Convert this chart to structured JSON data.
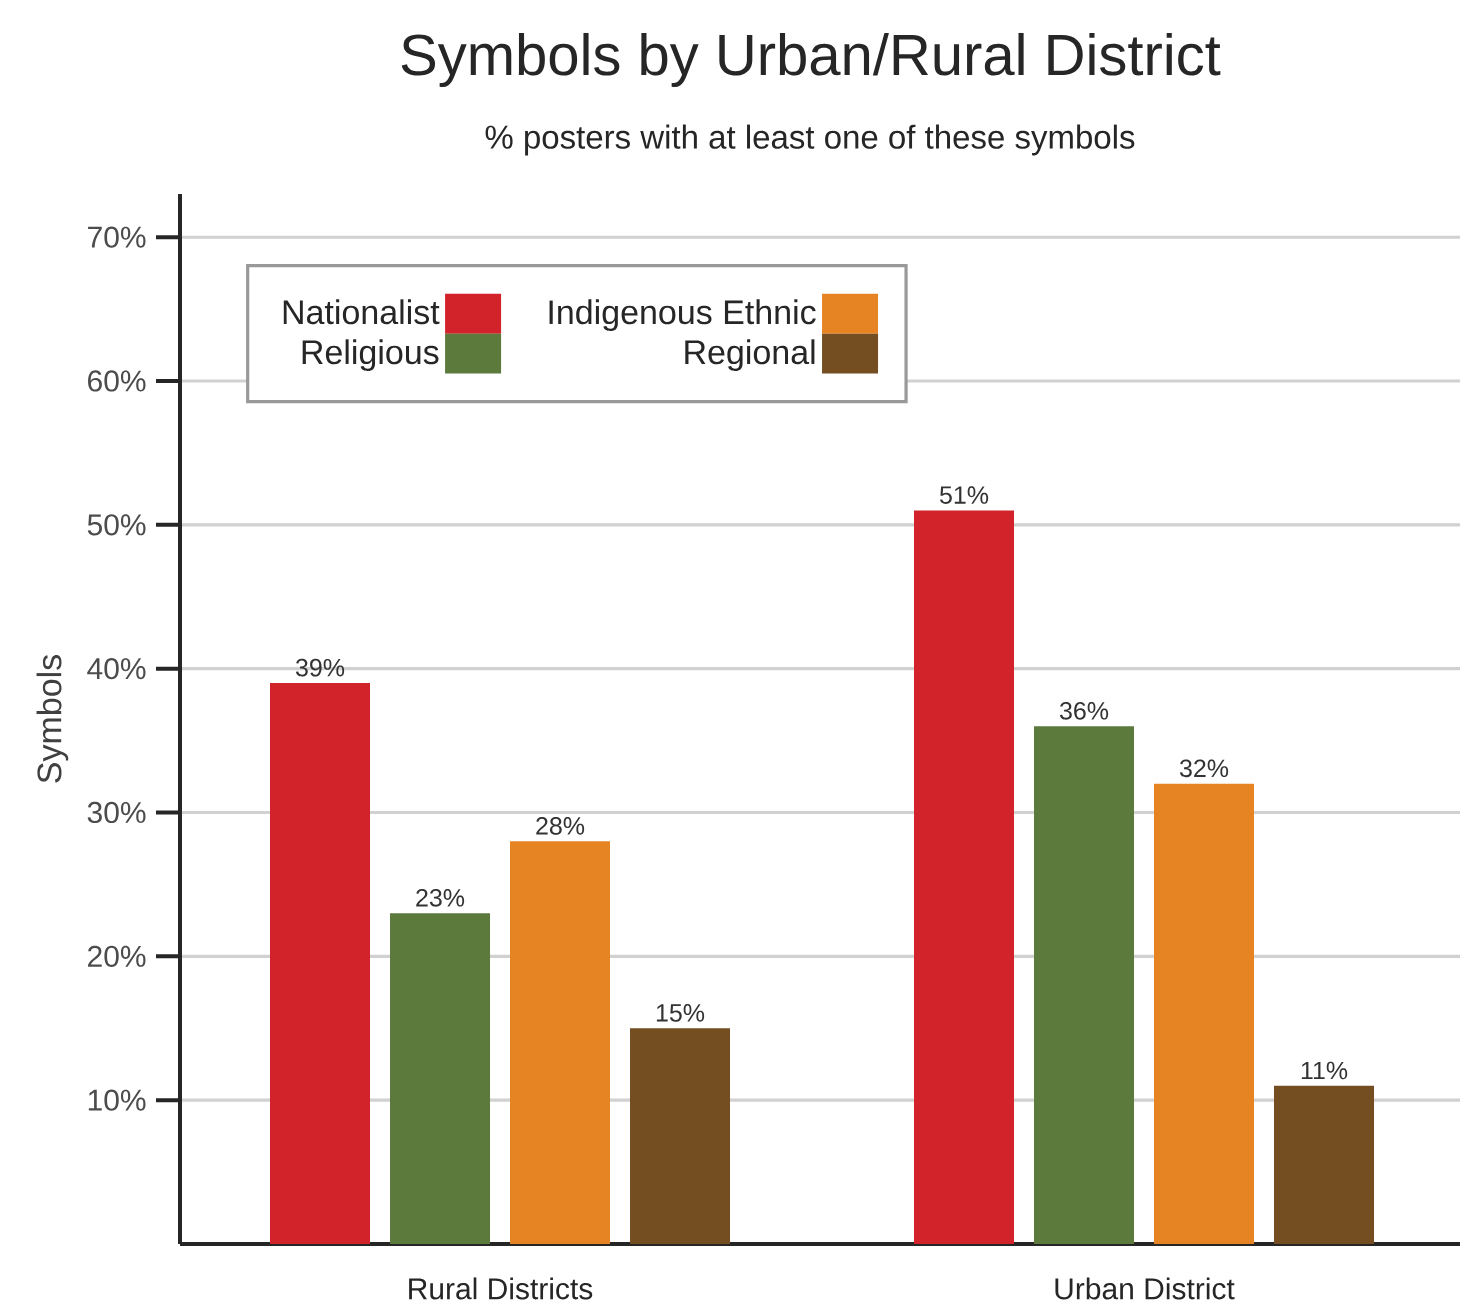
{
  "chart_data": {
    "type": "bar",
    "title": "Symbols by Urban/Rural District",
    "subtitle": "% posters with at least one of these symbols",
    "ylabel": "Symbols",
    "categories": [
      "Rural Districts",
      "Urban District"
    ],
    "series": [
      {
        "name": "Nationalist",
        "color": "#d2232a",
        "values": [
          39,
          51
        ],
        "value_labels": [
          "39%",
          "51%"
        ]
      },
      {
        "name": "Religious",
        "color": "#5c7a3c",
        "values": [
          23,
          36
        ],
        "value_labels": [
          "23%",
          "36%"
        ]
      },
      {
        "name": "Indigenous Ethnic",
        "color": "#e68424",
        "values": [
          28,
          32
        ],
        "value_labels": [
          "28%",
          "32%"
        ]
      },
      {
        "name": "Regional",
        "color": "#744e20",
        "values": [
          15,
          11
        ],
        "value_labels": [
          "15%",
          "11%"
        ]
      }
    ],
    "ylim": [
      0,
      73
    ],
    "yticks": [
      {
        "value": 10,
        "label": "10%"
      },
      {
        "value": 20,
        "label": "20%"
      },
      {
        "value": 30,
        "label": "30%"
      },
      {
        "value": 40,
        "label": "40%"
      },
      {
        "value": 50,
        "label": "50%"
      },
      {
        "value": 60,
        "label": "60%"
      },
      {
        "value": 70,
        "label": "70%"
      }
    ],
    "grid": "y",
    "legend": "top left"
  }
}
